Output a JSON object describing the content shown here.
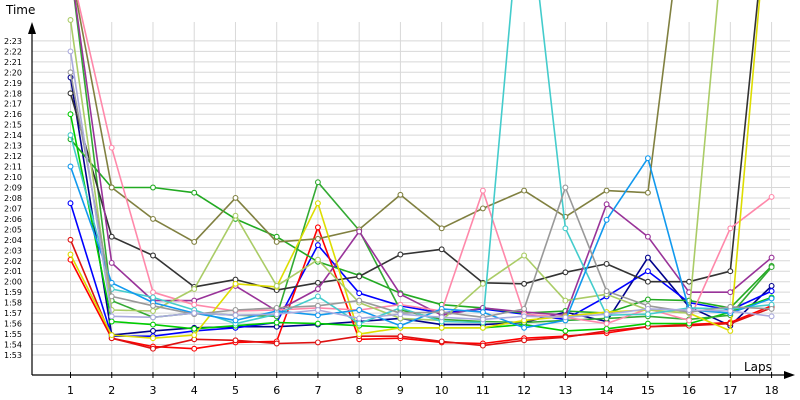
{
  "chart_data": {
    "type": "line",
    "ylabel": "Time",
    "xlabel": "Laps",
    "x_ticks": [
      "1",
      "2",
      "3",
      "4",
      "5",
      "6",
      "7",
      "8",
      "9",
      "10",
      "11",
      "12",
      "13",
      "14",
      "15",
      "16",
      "17",
      "18"
    ],
    "y_ticks": [
      "1:53",
      "1:54",
      "1:55",
      "1:56",
      "1:57",
      "1:58",
      "1:59",
      "2:00",
      "2:01",
      "2:02",
      "2:03",
      "2:04",
      "2:05",
      "2:06",
      "2:07",
      "2:08",
      "2:09",
      "2:10",
      "2:11",
      "2:12",
      "2:13",
      "2:14",
      "2:15",
      "2:16",
      "2:17",
      "2:18",
      "2:19",
      "2:20",
      "2:21",
      "2:22",
      "2:23"
    ],
    "y_range_seconds": [
      112,
      144
    ],
    "x_range": [
      0.1,
      18.3
    ],
    "grid": true,
    "series": [
      {
        "color": "#00008b",
        "values": [
          139.5,
          114.9,
          115.3,
          115.6,
          115.7,
          115.7,
          115.9,
          116.2,
          116.5,
          115.9,
          115.9,
          116.1,
          117.1,
          116.2,
          122.3,
          117.6,
          115.8,
          119.6
        ]
      },
      {
        "color": "#0000ff",
        "values": [
          127.5,
          114.8,
          114.8,
          115.3,
          115.6,
          116.1,
          123.5,
          118.9,
          117.7,
          117.0,
          117.4,
          116.9,
          116.4,
          118.6,
          121.0,
          118.0,
          117.3,
          119.1
        ]
      },
      {
        "color": "#ff0000",
        "values": [
          122.1,
          114.6,
          113.8,
          113.6,
          114.2,
          114.3,
          125.2,
          114.5,
          114.6,
          114.2,
          114.1,
          114.6,
          114.8,
          115.1,
          115.7,
          115.9,
          116.1,
          117.7
        ]
      },
      {
        "color": "#dd1111",
        "values": [
          124.0,
          114.6,
          113.6,
          114.5,
          114.4,
          114.1,
          114.2,
          114.8,
          114.8,
          114.3,
          113.9,
          114.4,
          114.7,
          115.3,
          115.7,
          115.8,
          116.0,
          117.5
        ]
      },
      {
        "color": "#22aa22",
        "values": [
          133.6,
          129.0,
          129.0,
          128.5,
          126.0,
          124.3,
          121.9,
          120.6,
          118.9,
          117.8,
          117.5,
          117.0,
          117.2,
          117.0,
          118.3,
          118.2,
          117.5,
          121.5
        ]
      },
      {
        "color": "#00cc00",
        "values": [
          136.0,
          116.2,
          115.9,
          115.5,
          115.8,
          116.1,
          116.0,
          115.8,
          115.6,
          115.6,
          115.6,
          115.9,
          115.3,
          115.5,
          116.0,
          116.0,
          117.1,
          118.5
        ]
      },
      {
        "color": "#33aa33",
        "values": [
          150.0,
          118.2,
          116.6,
          117.0,
          116.8,
          116.7,
          129.5,
          124.9,
          117.3,
          116.4,
          116.2,
          116.1,
          116.3,
          116.5,
          116.7,
          116.4,
          116.8,
          121.4
        ]
      },
      {
        "color": "#808040",
        "values": [
          150.0,
          129.0,
          126.0,
          123.8,
          128.0,
          123.8,
          124.1,
          125.0,
          128.3,
          125.1,
          127.0,
          128.7,
          126.2,
          128.7,
          128.5,
          160.0,
          160.0,
          160.0
        ]
      },
      {
        "color": "#333333",
        "values": [
          138.0,
          124.3,
          122.5,
          119.5,
          120.2,
          119.2,
          119.9,
          120.5,
          122.6,
          123.1,
          119.9,
          119.8,
          120.9,
          121.7,
          120.0,
          120.0,
          121.0,
          160.0
        ]
      },
      {
        "color": "#993399",
        "values": [
          150.0,
          121.8,
          118.2,
          118.2,
          119.6,
          117.2,
          119.3,
          124.8,
          118.8,
          116.8,
          117.5,
          117.1,
          116.8,
          127.4,
          124.3,
          119.0,
          119.0,
          122.3
        ]
      },
      {
        "color": "#ff88aa",
        "values": [
          150.0,
          132.8,
          119.0,
          117.8,
          117.2,
          117.3,
          117.5,
          117.3,
          117.8,
          117.2,
          128.7,
          116.9,
          116.6,
          116.0,
          117.4,
          116.3,
          125.1,
          128.1
        ]
      },
      {
        "color": "#dddd00",
        "values": [
          122.6,
          114.9,
          114.6,
          114.9,
          119.8,
          119.5,
          127.5,
          115.0,
          115.6,
          115.6,
          115.6,
          116.3,
          116.7,
          117.1,
          117.3,
          117.0,
          115.3,
          160.0
        ]
      },
      {
        "color": "#aacc66",
        "values": [
          145.0,
          117.3,
          117.2,
          119.3,
          126.3,
          119.6,
          122.1,
          118.0,
          116.5,
          116.3,
          119.8,
          122.5,
          118.2,
          118.8,
          117.3,
          117.0,
          160.0,
          160.0
        ]
      },
      {
        "color": "#44cccc",
        "values": [
          134.0,
          119.3,
          118.5,
          117.3,
          116.0,
          116.9,
          118.6,
          116.0,
          117.5,
          116.2,
          116.1,
          160.0,
          125.1,
          116.8,
          116.9,
          117.5,
          117.4,
          117.8
        ]
      },
      {
        "color": "#1199ee",
        "values": [
          131.0,
          119.9,
          118.0,
          117.0,
          116.3,
          117.2,
          116.8,
          117.3,
          115.8,
          117.4,
          117.1,
          115.6,
          116.3,
          125.9,
          131.8,
          117.3,
          117.0,
          118.4
        ]
      },
      {
        "color": "#999999",
        "values": [
          140.0,
          118.6,
          117.7,
          116.9,
          117.3,
          117.5,
          117.7,
          118.2,
          117.0,
          117.1,
          116.6,
          117.4,
          129.0,
          119.1,
          117.7,
          117.1,
          117.6,
          117.4
        ]
      },
      {
        "color": "#aaaadd",
        "values": [
          142.0,
          116.7,
          116.6,
          117.0,
          116.8,
          116.9,
          117.3,
          116.5,
          116.9,
          116.6,
          116.4,
          116.7,
          116.6,
          116.9,
          117.4,
          117.3,
          117.2,
          116.7
        ]
      }
    ]
  }
}
